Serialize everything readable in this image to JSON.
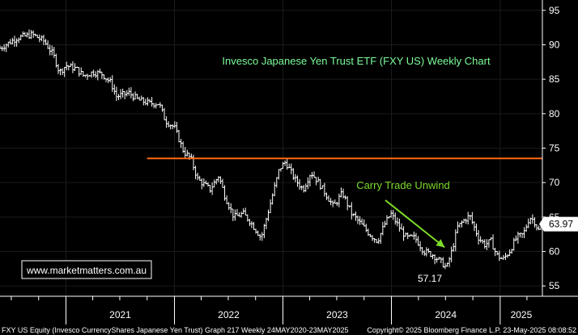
{
  "chart_data": {
    "type": "ohlc",
    "title": "Invesco Japanese Yen Trust ETF (FXY US) Weekly Chart",
    "title_color": "#7CFC9A",
    "frequency": "weekly",
    "x_range": [
      "2020-05-24",
      "2025-05-23"
    ],
    "y_range": [
      53.5,
      96.5
    ],
    "y_ticks": [
      55,
      60,
      65,
      70,
      75,
      80,
      85,
      90,
      95
    ],
    "x_ticks": [
      "2021",
      "2022",
      "2023",
      "2024",
      "2025"
    ],
    "x_tick_years": [
      2021,
      2022,
      2023,
      2024,
      2025
    ],
    "y_axis_side": "right",
    "background": "#000000",
    "bar_color": "#ffffff",
    "last_price": {
      "label": "63.97",
      "value": 63.97
    },
    "min_annotation": {
      "label": "57.17",
      "value": 57.17,
      "date": "2024-07-05"
    },
    "resistance_line": {
      "value": 73.5,
      "color": "#ff6a13",
      "from": "2021-10-01",
      "to": "2025-05-23"
    },
    "annotations": [
      {
        "text": "Carry Trade Unwind",
        "color": "#7ddb2a",
        "arrow_to": {
          "date": "2024-06-28",
          "value": 60.6
        }
      }
    ],
    "watermark": "www.marketmatters.com.au",
    "footer_left": "FXY US Equity (Invesco CurrencyShares Japanese Yen Trust) Graph 217  Weekly 24MAY2020-23MAY2025",
    "footer_right": "Copyright© 2025 Bloomberg Finance L.P.   23-May-2025 08:08:52",
    "key_points": [
      {
        "date": "2020-05-24",
        "value": 89.5
      },
      {
        "date": "2020-07-20",
        "value": 91.0
      },
      {
        "date": "2020-09-10",
        "value": 91.5
      },
      {
        "date": "2020-10-20",
        "value": 90.5
      },
      {
        "date": "2020-11-20",
        "value": 88.5
      },
      {
        "date": "2020-12-10",
        "value": 86.0
      },
      {
        "date": "2021-01-01",
        "value": 87.0
      },
      {
        "date": "2021-02-05",
        "value": 86.5
      },
      {
        "date": "2021-03-01",
        "value": 85.5
      },
      {
        "date": "2021-04-01",
        "value": 86.0
      },
      {
        "date": "2021-05-01",
        "value": 85.8
      },
      {
        "date": "2021-06-01",
        "value": 84.5
      },
      {
        "date": "2021-06-20",
        "value": 82.5
      },
      {
        "date": "2021-08-01",
        "value": 83.0
      },
      {
        "date": "2021-09-01",
        "value": 82.0
      },
      {
        "date": "2021-10-10",
        "value": 81.5
      },
      {
        "date": "2021-11-10",
        "value": 81.5
      },
      {
        "date": "2021-12-01",
        "value": 79.0
      },
      {
        "date": "2022-01-01",
        "value": 78.0
      },
      {
        "date": "2022-02-01",
        "value": 74.5
      },
      {
        "date": "2022-02-25",
        "value": 73.5
      },
      {
        "date": "2022-03-20",
        "value": 70.5
      },
      {
        "date": "2022-05-01",
        "value": 69.0
      },
      {
        "date": "2022-05-30",
        "value": 71.0
      },
      {
        "date": "2022-06-20",
        "value": 68.0
      },
      {
        "date": "2022-07-20",
        "value": 65.0
      },
      {
        "date": "2022-08-20",
        "value": 65.5
      },
      {
        "date": "2022-09-10",
        "value": 64.5
      },
      {
        "date": "2022-10-20",
        "value": 62.0
      },
      {
        "date": "2022-11-20",
        "value": 67.0
      },
      {
        "date": "2022-12-20",
        "value": 72.0
      },
      {
        "date": "2023-01-10",
        "value": 73.0
      },
      {
        "date": "2023-02-10",
        "value": 70.5
      },
      {
        "date": "2023-03-10",
        "value": 69.0
      },
      {
        "date": "2023-04-05",
        "value": 71.5
      },
      {
        "date": "2023-05-01",
        "value": 70.0
      },
      {
        "date": "2023-05-30",
        "value": 68.0
      },
      {
        "date": "2023-06-20",
        "value": 66.5
      },
      {
        "date": "2023-07-20",
        "value": 68.5
      },
      {
        "date": "2023-08-20",
        "value": 65.5
      },
      {
        "date": "2023-09-20",
        "value": 64.0
      },
      {
        "date": "2023-10-20",
        "value": 62.5
      },
      {
        "date": "2023-11-15",
        "value": 61.5
      },
      {
        "date": "2023-12-10",
        "value": 64.0
      },
      {
        "date": "2023-12-30",
        "value": 65.5
      },
      {
        "date": "2024-01-20",
        "value": 64.0
      },
      {
        "date": "2024-02-20",
        "value": 62.0
      },
      {
        "date": "2024-03-20",
        "value": 62.0
      },
      {
        "date": "2024-04-20",
        "value": 60.0
      },
      {
        "date": "2024-05-20",
        "value": 59.5
      },
      {
        "date": "2024-06-15",
        "value": 58.5
      },
      {
        "date": "2024-07-05",
        "value": 57.6
      },
      {
        "date": "2024-07-25",
        "value": 60.5
      },
      {
        "date": "2024-08-10",
        "value": 63.5
      },
      {
        "date": "2024-09-01",
        "value": 64.5
      },
      {
        "date": "2024-09-20",
        "value": 65.2
      },
      {
        "date": "2024-10-20",
        "value": 62.0
      },
      {
        "date": "2024-11-10",
        "value": 61.0
      },
      {
        "date": "2024-12-01",
        "value": 61.5
      },
      {
        "date": "2024-12-20",
        "value": 59.5
      },
      {
        "date": "2025-01-10",
        "value": 58.8
      },
      {
        "date": "2025-02-01",
        "value": 60.0
      },
      {
        "date": "2025-02-25",
        "value": 62.0
      },
      {
        "date": "2025-03-20",
        "value": 62.5
      },
      {
        "date": "2025-04-10",
        "value": 65.0
      },
      {
        "date": "2025-04-25",
        "value": 64.5
      },
      {
        "date": "2025-05-10",
        "value": 63.0
      },
      {
        "date": "2025-05-23",
        "value": 63.97
      }
    ]
  }
}
